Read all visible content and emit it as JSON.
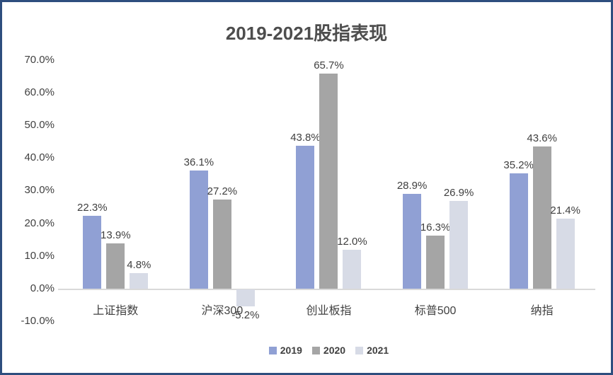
{
  "frame": {
    "border_color": "#2E4E7E",
    "background": "#FFFFFF"
  },
  "chart_data": {
    "type": "bar",
    "title": "2019-2021股指表现",
    "categories": [
      "上证指数",
      "沪深300",
      "创业板指",
      "标普500",
      "纳指"
    ],
    "series": [
      {
        "name": "2019",
        "color": "#90A0D4",
        "values": [
          22.3,
          36.1,
          43.8,
          28.9,
          35.2
        ],
        "labels": [
          "22.3%",
          "36.1%",
          "43.8%",
          "28.9%",
          "35.2%"
        ]
      },
      {
        "name": "2020",
        "color": "#A5A5A5",
        "values": [
          13.9,
          27.2,
          65.7,
          16.3,
          43.6
        ],
        "labels": [
          "13.9%",
          "27.2%",
          "65.7%",
          "16.3%",
          "43.6%"
        ]
      },
      {
        "name": "2021",
        "color": "#D7DBE6",
        "values": [
          4.8,
          -5.2,
          12.0,
          26.9,
          21.4
        ],
        "labels": [
          "4.8%",
          "-5.2%",
          "12.0%",
          "26.9%",
          "21.4%"
        ]
      }
    ],
    "yticks": [
      "70.0%",
      "60.0%",
      "50.0%",
      "40.0%",
      "30.0%",
      "20.0%",
      "10.0%",
      "0.0%",
      "-10.0%"
    ],
    "ytick_values": [
      70,
      60,
      50,
      40,
      30,
      20,
      10,
      0,
      -10
    ],
    "ylim": [
      -14,
      75
    ],
    "grid": false,
    "legend_position": "bottom",
    "axis_line_color": "#D9D9D9",
    "text_color": "#404040"
  }
}
